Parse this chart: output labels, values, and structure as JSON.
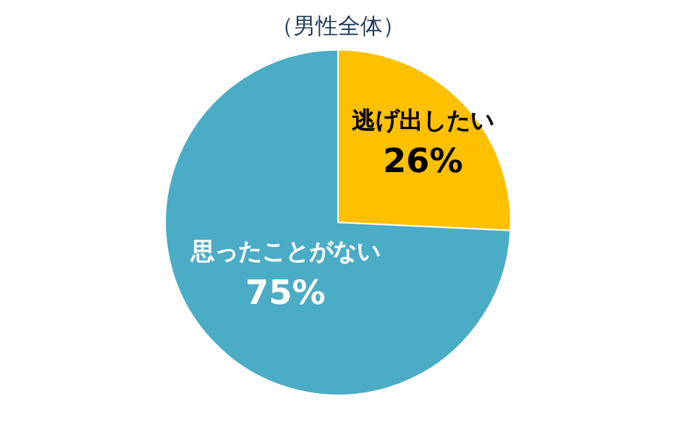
{
  "chart_data": {
    "type": "pie",
    "title": "（男性全体）",
    "categories": [
      "逃げ出したい",
      "思ったことがない"
    ],
    "values": [
      26,
      75
    ],
    "value_labels": [
      "26%",
      "75%"
    ],
    "colors": [
      "#ffc000",
      "#4bacc6"
    ],
    "legend": false
  }
}
